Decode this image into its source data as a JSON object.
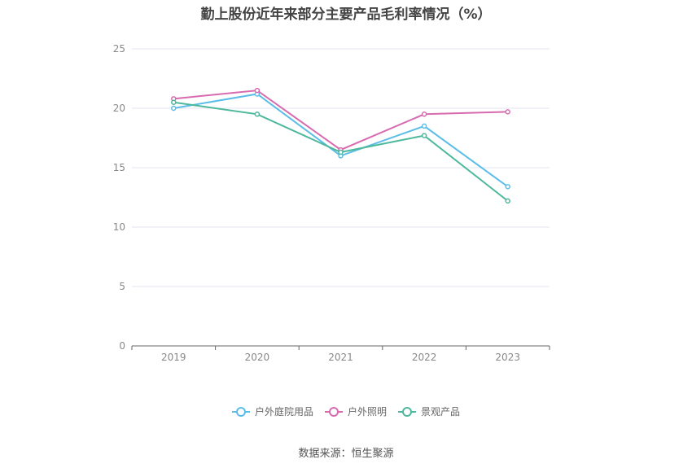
{
  "chart_data": {
    "type": "line",
    "title": "勤上股份近年来部分主要产品毛利率情况（%）",
    "categories": [
      "2019",
      "2020",
      "2021",
      "2022",
      "2023"
    ],
    "yticks": [
      "0",
      "5",
      "10",
      "15",
      "20",
      "25"
    ],
    "ylim": [
      0,
      25
    ],
    "grid": true,
    "legend_position": "bottom-center",
    "series": [
      {
        "name": "户外庭院用品",
        "color": "#5bbde8",
        "values": [
          20.0,
          21.2,
          16.0,
          18.5,
          13.4
        ]
      },
      {
        "name": "户外照明",
        "color": "#d86bb0",
        "values": [
          20.8,
          21.5,
          16.5,
          19.5,
          19.7
        ]
      },
      {
        "name": "景观产品",
        "color": "#4db89c",
        "values": [
          20.5,
          19.5,
          16.3,
          17.7,
          12.2
        ]
      }
    ]
  },
  "legend_light_colors": [
    "#a6dcf5",
    "#f2b3dc",
    "#a2ddd0"
  ],
  "source_text": "数据来源：恒生聚源"
}
